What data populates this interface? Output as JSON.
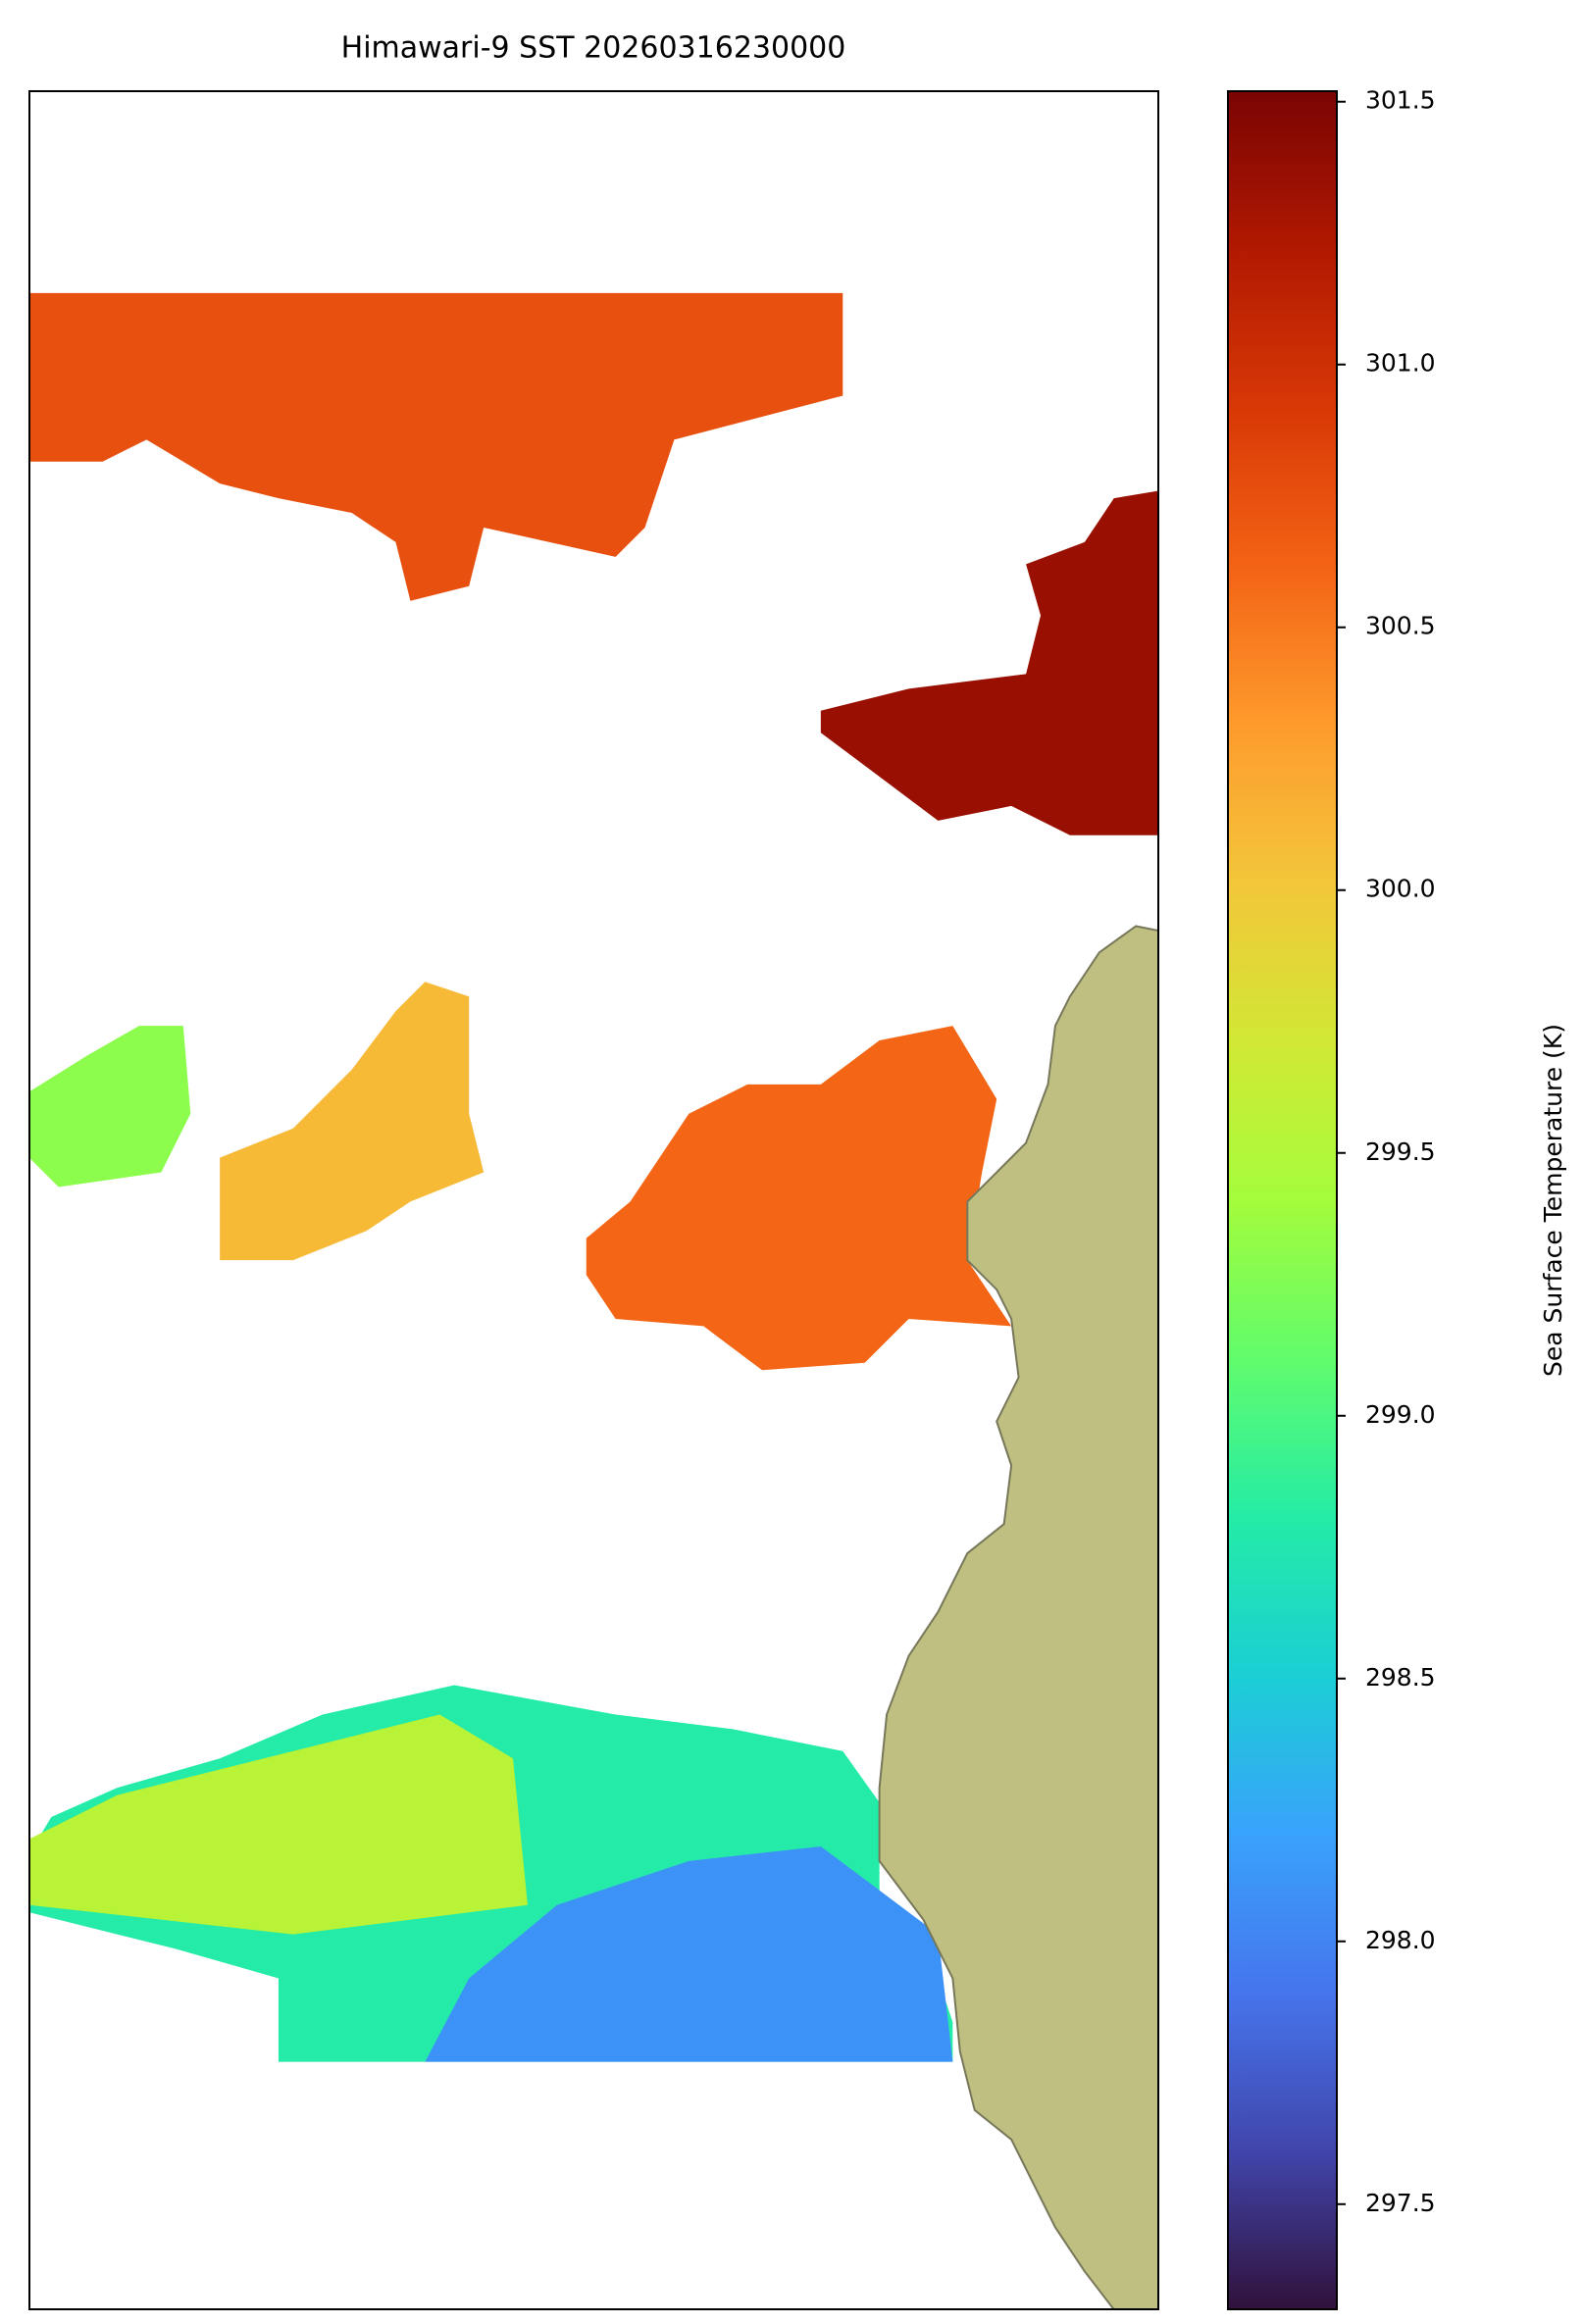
{
  "title": "Himawari-9 SST 20260316230000",
  "colorbar": {
    "label": "Sea Surface Temperature (K)",
    "colormap": "turbo",
    "lim": [
      297.3,
      301.52
    ],
    "ticks": [
      297.5,
      {
        "value": 298,
        "label": "298.0"
      },
      298.5,
      {
        "value": 299,
        "label": "299.0"
      },
      299.5,
      {
        "value": 300,
        "label": "300.0"
      },
      300.5,
      {
        "value": 301,
        "label": "301.0"
      },
      301.5
    ]
  },
  "regions": [
    {
      "value": 300.75
    },
    {
      "value": 301.35
    },
    {
      "value": 300.1
    },
    {
      "value": 299.3
    },
    {
      "value": 300.6
    },
    {
      "value": 298.8
    },
    {
      "value": 299.55
    },
    {
      "value": 298.1
    }
  ]
}
